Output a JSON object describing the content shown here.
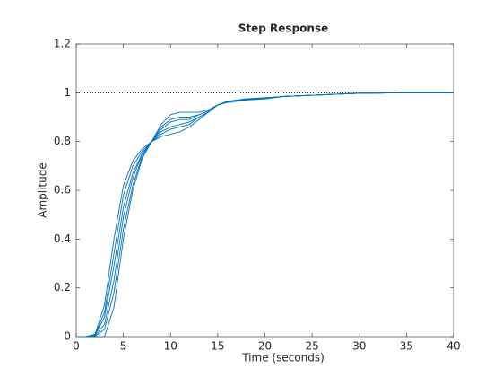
{
  "chart_data": {
    "type": "line",
    "title": "Step Response",
    "xlabel": "Time (seconds)",
    "ylabel": "Amplitude",
    "x": [
      0,
      1,
      2,
      3,
      4,
      5,
      6,
      7,
      8,
      9,
      10,
      11,
      12,
      13,
      14,
      15,
      16,
      17,
      18,
      20,
      22,
      25,
      30,
      35,
      40
    ],
    "series": [
      {
        "color": "#0072bd",
        "values": [
          0,
          0,
          0.01,
          0.13,
          0.4,
          0.62,
          0.72,
          0.77,
          0.8,
          0.82,
          0.83,
          0.84,
          0.86,
          0.89,
          0.92,
          0.95,
          0.965,
          0.97,
          0.975,
          0.98,
          0.985,
          0.99,
          0.998,
          1,
          1
        ]
      },
      {
        "color": "#0072bd",
        "values": [
          0,
          0,
          0.008,
          0.1,
          0.34,
          0.58,
          0.7,
          0.76,
          0.8,
          0.83,
          0.85,
          0.86,
          0.87,
          0.9,
          0.92,
          0.95,
          0.964,
          0.969,
          0.974,
          0.979,
          0.985,
          0.99,
          0.998,
          1,
          1
        ]
      },
      {
        "color": "#0072bd",
        "values": [
          0,
          0,
          0.006,
          0.08,
          0.29,
          0.53,
          0.67,
          0.75,
          0.8,
          0.84,
          0.86,
          0.87,
          0.88,
          0.9,
          0.92,
          0.95,
          0.963,
          0.968,
          0.973,
          0.978,
          0.985,
          0.99,
          0.998,
          1,
          1
        ]
      },
      {
        "color": "#0072bd",
        "values": [
          0,
          0,
          0.004,
          0.05,
          0.23,
          0.49,
          0.65,
          0.75,
          0.8,
          0.85,
          0.88,
          0.89,
          0.89,
          0.91,
          0.925,
          0.95,
          0.962,
          0.967,
          0.972,
          0.977,
          0.985,
          0.99,
          0.998,
          1,
          1
        ]
      },
      {
        "color": "#0072bd",
        "values": [
          0,
          0,
          0.002,
          0.03,
          0.18,
          0.44,
          0.62,
          0.74,
          0.8,
          0.86,
          0.89,
          0.9,
          0.9,
          0.91,
          0.925,
          0.95,
          0.961,
          0.966,
          0.971,
          0.976,
          0.985,
          0.99,
          0.998,
          1,
          1
        ]
      },
      {
        "color": "#0072bd",
        "values": [
          0,
          0,
          0,
          0,
          0.12,
          0.4,
          0.6,
          0.73,
          0.8,
          0.87,
          0.91,
          0.92,
          0.92,
          0.92,
          0.93,
          0.95,
          0.96,
          0.965,
          0.97,
          0.975,
          0.985,
          0.99,
          0.998,
          1,
          1
        ]
      }
    ],
    "reference_line": 1,
    "xlim": [
      0,
      40
    ],
    "xticks": [
      0,
      5,
      10,
      15,
      20,
      25,
      30,
      35,
      40
    ],
    "ylim": [
      0,
      1.2
    ],
    "yticks": [
      0,
      0.2,
      0.4,
      0.6,
      0.8,
      1,
      1.2
    ]
  }
}
